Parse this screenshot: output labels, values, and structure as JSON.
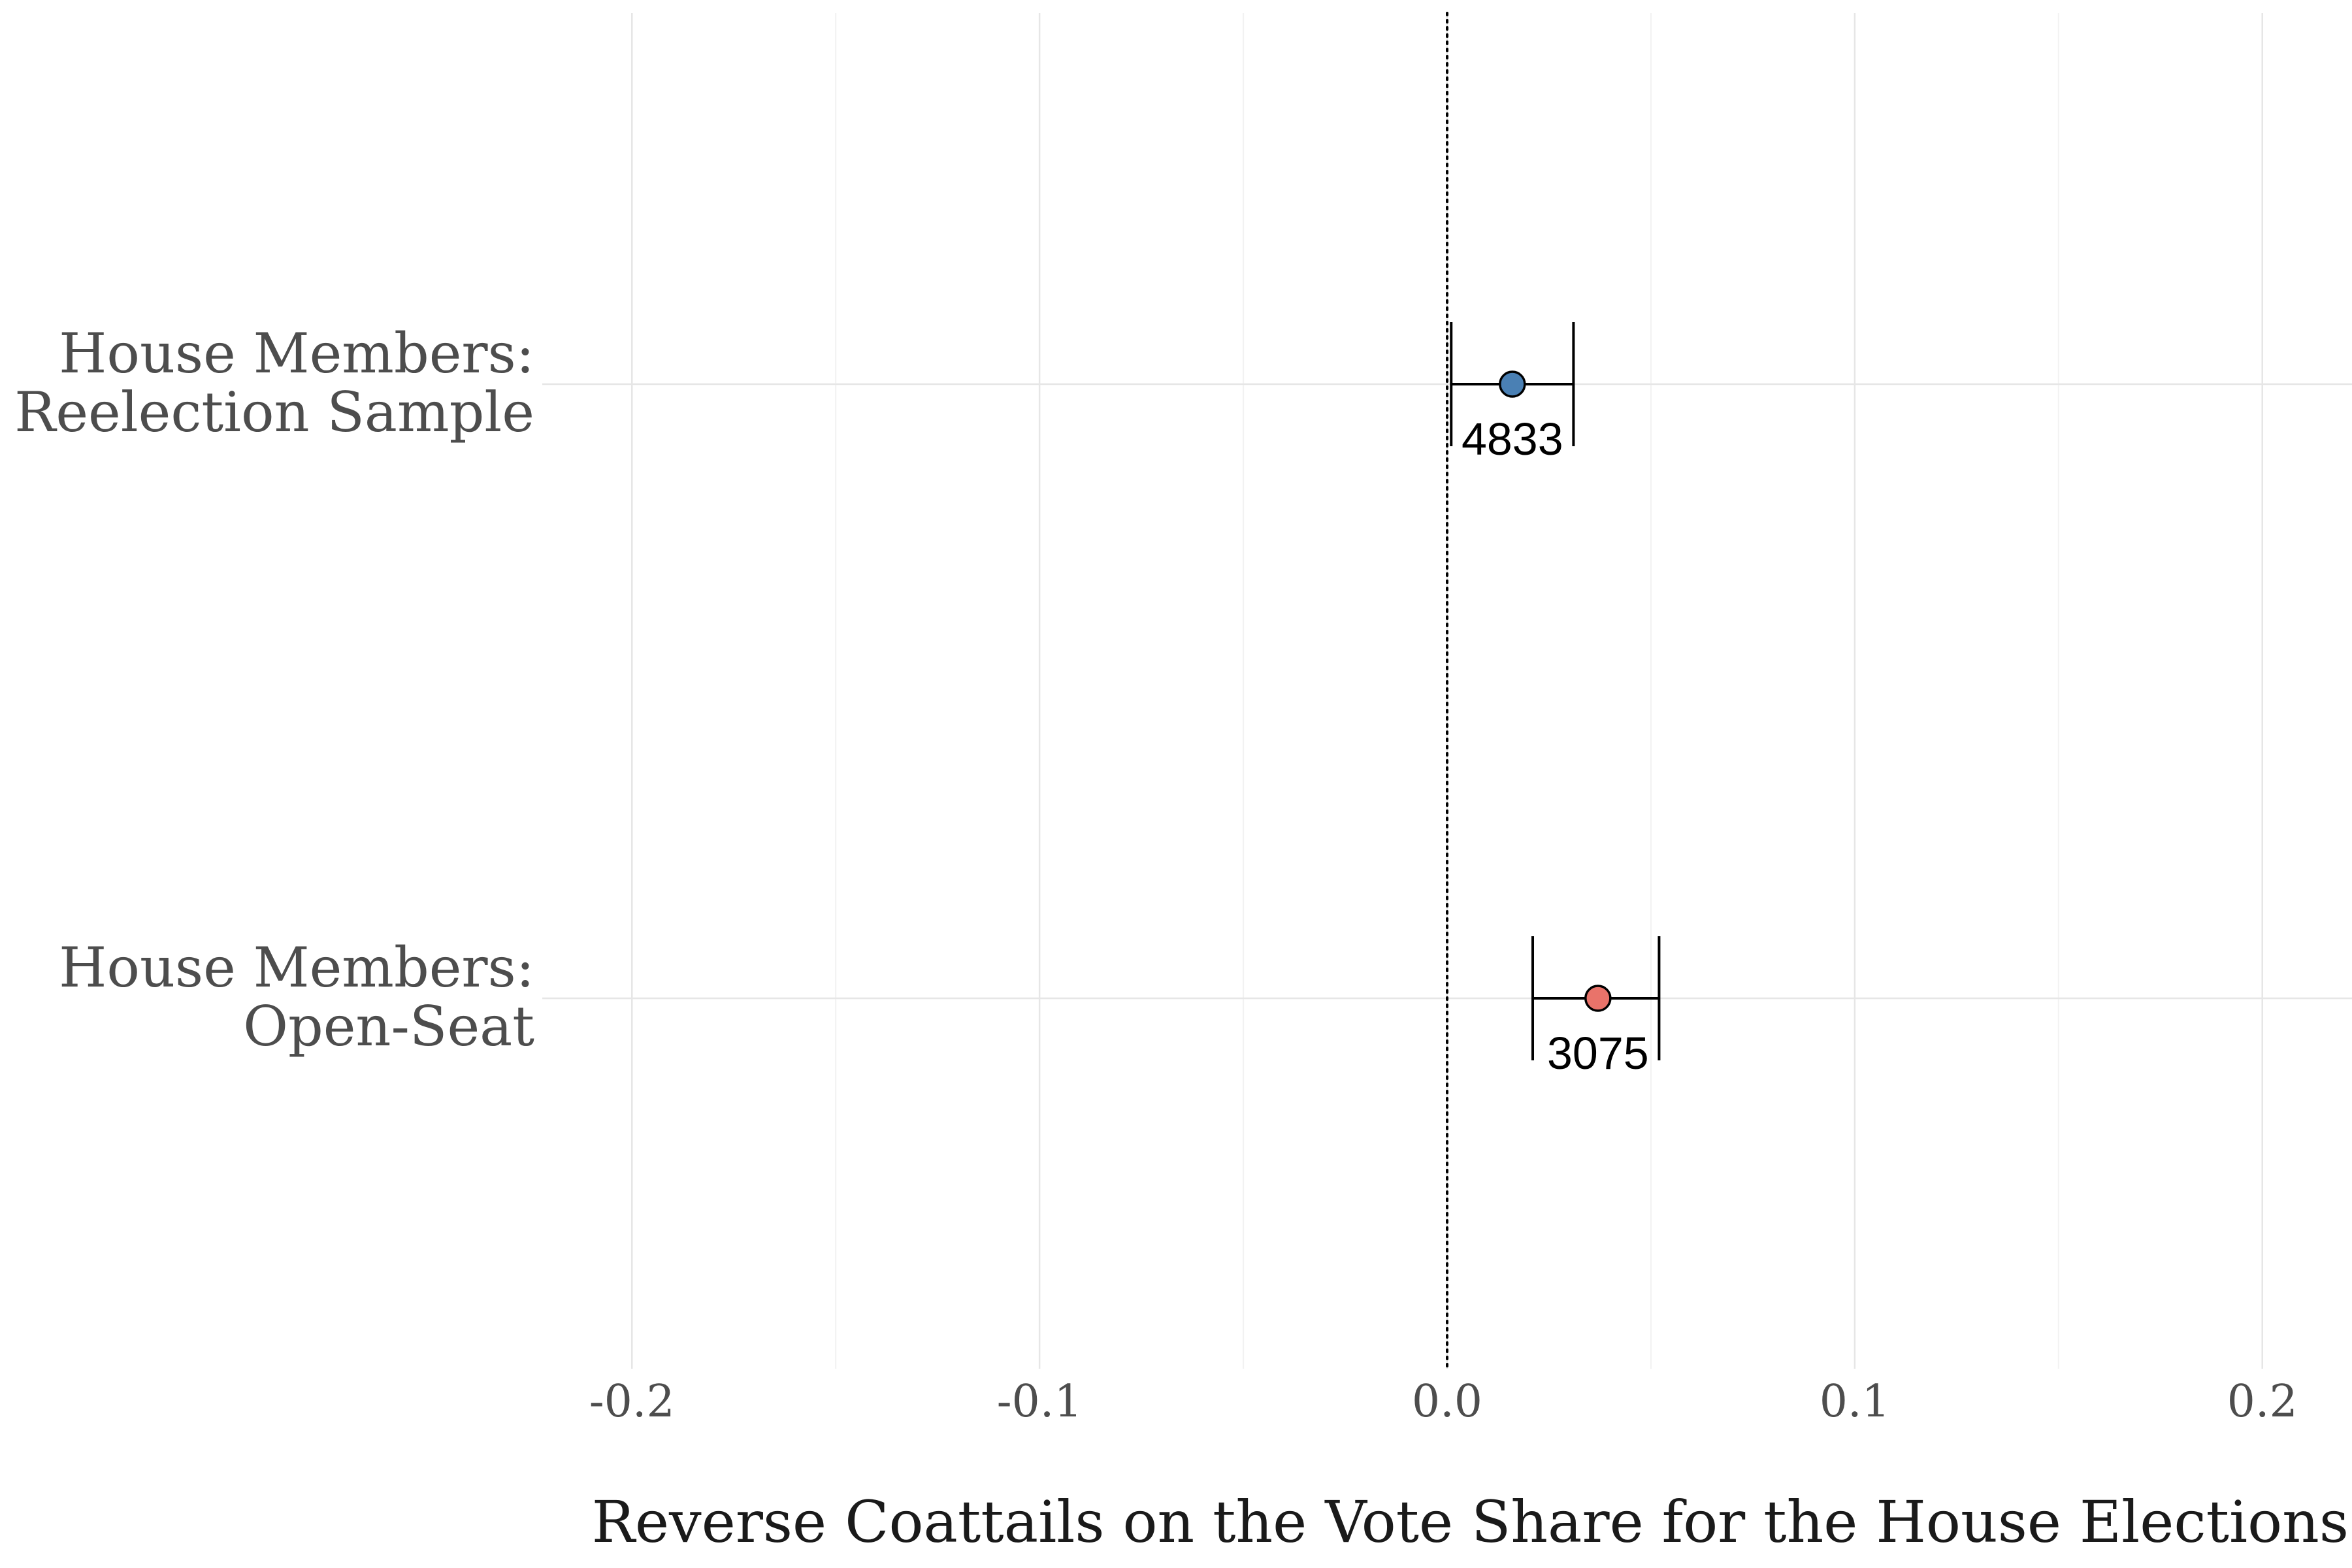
{
  "chart_data": {
    "type": "scatter",
    "title": "",
    "xlabel": "Reverse Coattails on the Vote Share for the House Elections",
    "ylabel": "",
    "xlim": [
      -0.222,
      0.222
    ],
    "xticks": [
      -0.2,
      -0.1,
      0.0,
      0.1,
      0.2
    ],
    "xtick_labels": [
      "-0.2",
      "-0.1",
      "0.0",
      "0.1",
      "0.2"
    ],
    "grid": true,
    "reference_line": {
      "x": 0.0,
      "style": "dotted"
    },
    "categories": [
      {
        "lines": [
          "House Members:",
          "Reelection Sample"
        ]
      },
      {
        "lines": [
          "House Members:",
          "Open-Seat"
        ]
      }
    ],
    "series": [
      {
        "points": [
          {
            "category_index": 0,
            "estimate": 0.016,
            "ci_low": 0.001,
            "ci_high": 0.031,
            "n": "4833",
            "color": "#4a80b4"
          },
          {
            "category_index": 1,
            "estimate": 0.037,
            "ci_low": 0.021,
            "ci_high": 0.052,
            "n": "3075",
            "color": "#e9736a"
          }
        ]
      }
    ]
  }
}
